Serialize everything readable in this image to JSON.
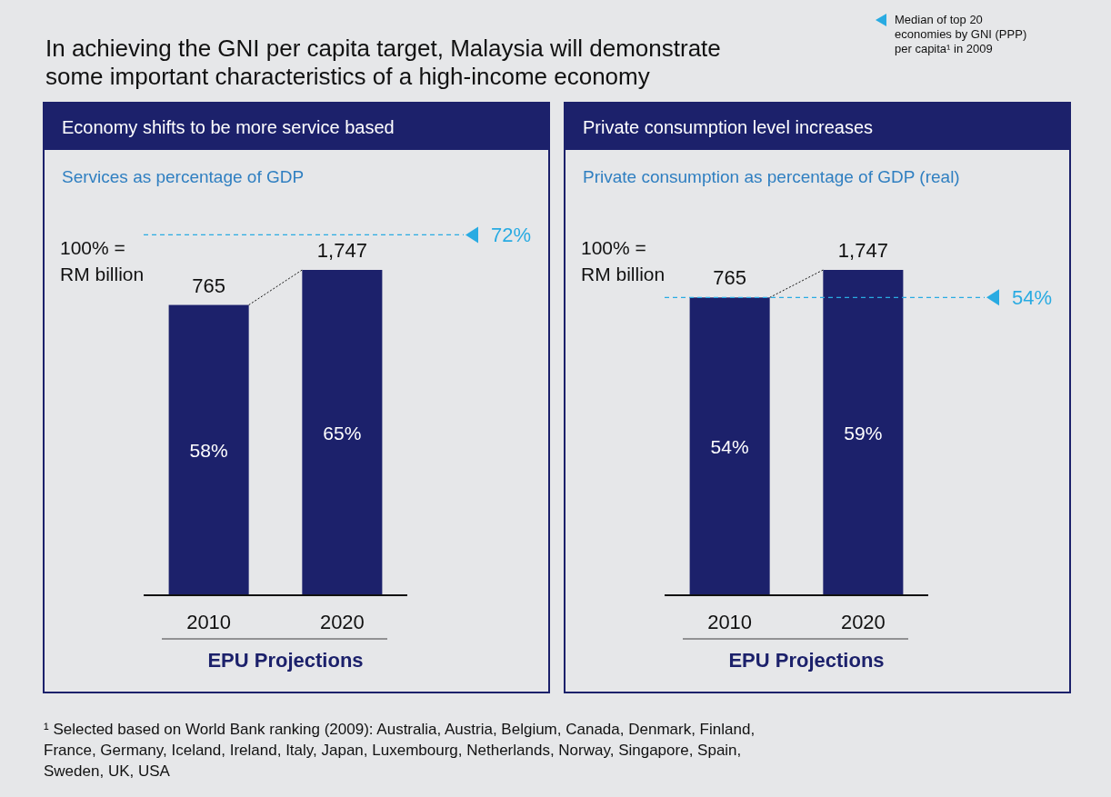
{
  "chart_data": [
    {
      "type": "other",
      "title": "In achieving the GNI per capita target, Malaysia will demonstrate some important characteristics of a high-income economy",
      "annotations": [
        "Median of top 20 economies by GNI (PPP) per capita¹ in 2009",
        "¹ Selected based on World Bank ranking (2009): Australia, Austria, Belgium, Canada, Denmark, Finland, France, Germany, Iceland, Ireland, Italy, Japan, Luxembourg, Netherlands, Norway, Singapore, Spain, Sweden, UK, USA"
      ]
    },
    {
      "type": "bar",
      "title": "Economy shifts to be more service based",
      "subtitle": "Services as percentage of GDP",
      "xlabel": "EPU Projections",
      "categories": [
        "2010",
        "2020"
      ],
      "values": [
        58,
        65
      ],
      "color": "#1c216b",
      "value_labels": [
        "58%",
        "65%"
      ],
      "ref_lines": [
        {
          "axis": "y",
          "value": 72,
          "label": "72%",
          "color": "#29abe2",
          "line_style": "dashed"
        }
      ],
      "annotations": [
        "100% =\nRM billion",
        {
          "text": "765",
          "x": "2010",
          "y": 58
        },
        {
          "text": "1,747",
          "x": "2020",
          "y": 65
        }
      ]
    },
    {
      "type": "bar",
      "title": "Private consumption level increases",
      "subtitle": "Private consumption as percentage of GDP (real)",
      "xlabel": "EPU Projections",
      "categories": [
        "2010",
        "2020"
      ],
      "values": [
        54,
        59
      ],
      "color": "#1c216b",
      "value_labels": [
        "54%",
        "59%"
      ],
      "ref_lines": [
        {
          "axis": "y",
          "value": 54,
          "label": "54%",
          "color": "#29abe2",
          "line_style": "dashed"
        }
      ],
      "annotations": [
        "100% =\nRM billion",
        {
          "text": "765",
          "x": "2010",
          "y": 54
        },
        {
          "text": "1,747",
          "x": "2020",
          "y": 59
        }
      ]
    }
  ]
}
